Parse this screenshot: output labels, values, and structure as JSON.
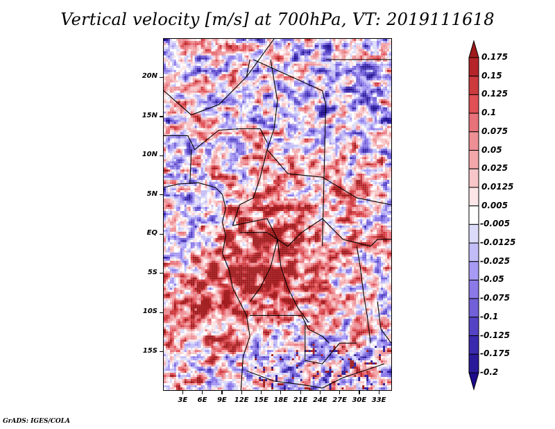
{
  "title": "Vertical velocity [m/s] at 700hPa, VT: 2019111618",
  "footer": "GrADS: IGES/COLA",
  "map": {
    "variable": "Vertical velocity",
    "units": "m/s",
    "level": "700hPa",
    "valid_time": "2019111618",
    "lon_range": [
      0,
      35
    ],
    "lat_range": [
      -20,
      25
    ],
    "y_axis": {
      "ticks": [
        {
          "label": "20N",
          "value": 20
        },
        {
          "label": "15N",
          "value": 15
        },
        {
          "label": "10N",
          "value": 10
        },
        {
          "label": "5N",
          "value": 5
        },
        {
          "label": "EQ",
          "value": 0
        },
        {
          "label": "5S",
          "value": -5
        },
        {
          "label": "10S",
          "value": -10
        },
        {
          "label": "15S",
          "value": -15
        }
      ]
    },
    "x_axis": {
      "ticks": [
        {
          "label": "3E",
          "value": 3
        },
        {
          "label": "6E",
          "value": 6
        },
        {
          "label": "9E",
          "value": 9
        },
        {
          "label": "12E",
          "value": 12
        },
        {
          "label": "15E",
          "value": 15
        },
        {
          "label": "18E",
          "value": 18
        },
        {
          "label": "21E",
          "value": 21
        },
        {
          "label": "24E",
          "value": 24
        },
        {
          "label": "27E",
          "value": 27
        },
        {
          "label": "30E",
          "value": 30
        },
        {
          "label": "33E",
          "value": 33
        }
      ]
    }
  },
  "colorbar": {
    "labels": [
      "0.175",
      "0.15",
      "0.125",
      "0.1",
      "0.075",
      "0.05",
      "0.025",
      "0.0125",
      "0.005",
      "-0.005",
      "-0.0125",
      "-0.025",
      "-0.05",
      "-0.075",
      "-0.1",
      "-0.125",
      "-0.175",
      "-0.2"
    ],
    "colors": [
      "#a01a1c",
      "#b52428",
      "#cc3a3e",
      "#e05055",
      "#e8727a",
      "#ec9096",
      "#f3a7aa",
      "#f8c6c8",
      "#fde6e7",
      "#ffffff",
      "#dcdcfa",
      "#c3bdf7",
      "#a79af4",
      "#8c79e8",
      "#7260d8",
      "#5443c4",
      "#3a2aae",
      "#2a1a9a",
      "#1e0b8c"
    ],
    "top_arrow_color": "#a01a1c",
    "bottom_arrow_color": "#1e0b8c"
  }
}
